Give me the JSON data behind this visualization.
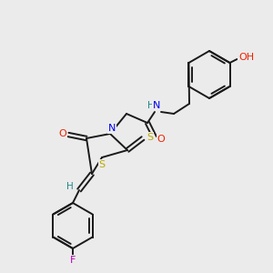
{
  "bg_color": "#ebebeb",
  "bond_color": "#1a1a1a",
  "atoms": {
    "N": "#0000ee",
    "O": "#ee2200",
    "S": "#bbaa00",
    "F": "#bb00bb",
    "H": "#228888",
    "C": "#1a1a1a"
  },
  "figsize": [
    3.0,
    3.0
  ],
  "dpi": 100
}
